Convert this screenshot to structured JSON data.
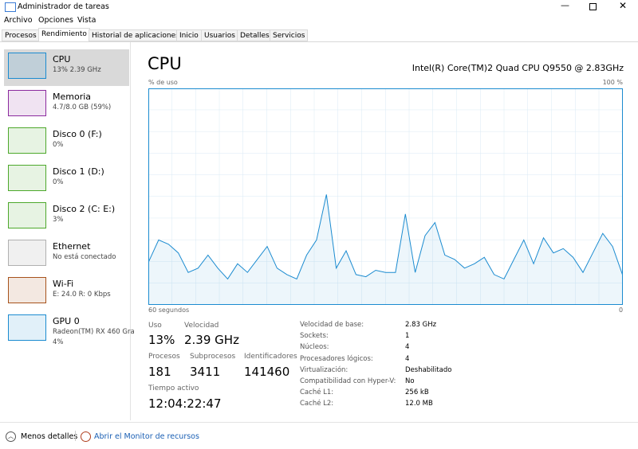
{
  "window": {
    "title": "Administrador de tareas"
  },
  "menu": [
    "Archivo",
    "Opciones",
    "Vista"
  ],
  "tabs": [
    "Procesos",
    "Rendimiento",
    "Historial de aplicaciones",
    "Inicio",
    "Usuarios",
    "Detalles",
    "Servicios"
  ],
  "sidebar": [
    {
      "name": "CPU",
      "details": [
        "13% 2.39 GHz"
      ],
      "color": "#1b8bd0"
    },
    {
      "name": "Memoria",
      "details": [
        "4.7/8.0 GB (59%)"
      ],
      "color": "#8b2a9e"
    },
    {
      "name": "Disco 0 (F:)",
      "details": [
        "0%"
      ],
      "color": "#4da82b"
    },
    {
      "name": "Disco 1 (D:)",
      "details": [
        "0%"
      ],
      "color": "#4da82b"
    },
    {
      "name": "Disco 2 (C: E:)",
      "details": [
        "3%"
      ],
      "color": "#4da82b"
    },
    {
      "name": "Ethernet",
      "details": [
        "No está conectado"
      ],
      "color": "#b0b0b0"
    },
    {
      "name": "Wi-Fi",
      "details": [
        "E: 24.0 R: 0 Kbps"
      ],
      "color": "#a7521b"
    },
    {
      "name": "GPU 0",
      "details": [
        "Radeon(TM) RX 460 Gra",
        "4%"
      ],
      "color": "#1b8bd0"
    }
  ],
  "header": {
    "title": "CPU",
    "model": "Intel(R) Core(TM)2 Quad CPU Q9550 @ 2.83GHz"
  },
  "graph": {
    "y_label": "% de uso",
    "y_max_label": "100 %",
    "x_label": "60 segundos",
    "x_end_label": "0",
    "ylim": [
      0,
      100
    ],
    "values": [
      20,
      30,
      28,
      24,
      15,
      17,
      23,
      17,
      12,
      19,
      15,
      21,
      27,
      17,
      14,
      12,
      23,
      30,
      51,
      17,
      25,
      14,
      13,
      16,
      15,
      15,
      42,
      15,
      32,
      38,
      23,
      21,
      17,
      19,
      22,
      14,
      12,
      21,
      30,
      19,
      31,
      24,
      26,
      22,
      15,
      24,
      33,
      27,
      14
    ]
  },
  "stats": [
    {
      "label": "Uso",
      "value": "13%"
    },
    {
      "label": "Velocidad",
      "value": "2.39 GHz"
    },
    {
      "label": "Procesos",
      "value": "181"
    },
    {
      "label": "Subprocesos",
      "value": "3411"
    },
    {
      "label": "Identificadores",
      "value": "141460"
    },
    {
      "label": "Tiempo activo",
      "value": "12:04:22:47"
    }
  ],
  "details": [
    {
      "label": "Velocidad de base:",
      "value": "2.83 GHz"
    },
    {
      "label": "Sockets:",
      "value": "1"
    },
    {
      "label": "Núcleos:",
      "value": "4"
    },
    {
      "label": "Procesadores lógicos:",
      "value": "4"
    },
    {
      "label": "Virtualización:",
      "value": "Deshabilitado"
    },
    {
      "label": "Compatibilidad con Hyper-V:",
      "value": "No"
    },
    {
      "label": "Caché L1:",
      "value": "256 kB"
    },
    {
      "label": "Caché L2:",
      "value": "12.0 MB"
    }
  ],
  "footer": {
    "less": "Menos detalles",
    "monitor": "Abrir el Monitor de recursos"
  }
}
